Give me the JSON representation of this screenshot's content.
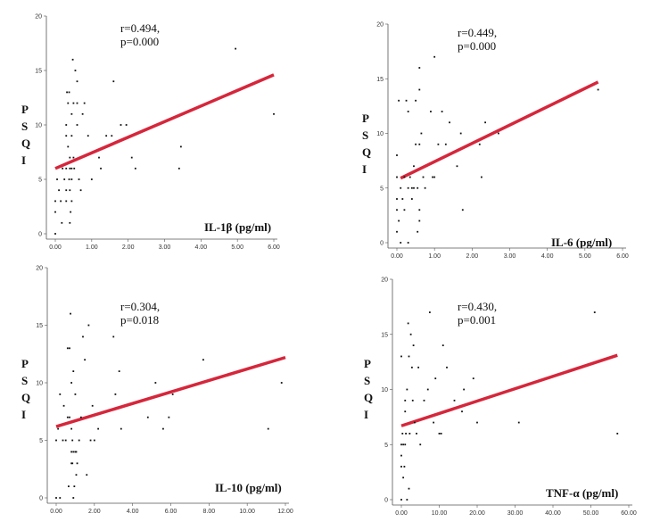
{
  "colors": {
    "fit_line": "#d6263b",
    "axis": "#555555",
    "point": "#111111"
  },
  "chart_data": [
    {
      "type": "scatter",
      "xlabel": "IL-1β (pg/ml)",
      "ylabel": "PSQI",
      "stat_r": "r=0.494,",
      "stat_p": "p=0.000",
      "xlim": [
        0,
        6
      ],
      "ylim": [
        0,
        20
      ],
      "xticks": [
        "0.00",
        "1.00",
        "2.00",
        "3.00",
        "4.00",
        "5.00",
        "6.00"
      ],
      "yticks": [
        "0",
        "5",
        "10",
        "15",
        "20"
      ],
      "fit": {
        "x": [
          0,
          6
        ],
        "y": [
          6.0,
          14.6
        ]
      },
      "points": [
        [
          0.0,
          0
        ],
        [
          0.0,
          2
        ],
        [
          0.0,
          3
        ],
        [
          0.05,
          5
        ],
        [
          0.1,
          4
        ],
        [
          0.15,
          3
        ],
        [
          0.18,
          1
        ],
        [
          0.2,
          6
        ],
        [
          0.25,
          5
        ],
        [
          0.3,
          3
        ],
        [
          0.3,
          4
        ],
        [
          0.3,
          6
        ],
        [
          0.3,
          9
        ],
        [
          0.3,
          10
        ],
        [
          0.32,
          13
        ],
        [
          0.35,
          8
        ],
        [
          0.35,
          12
        ],
        [
          0.38,
          5
        ],
        [
          0.38,
          13
        ],
        [
          0.4,
          1
        ],
        [
          0.4,
          4
        ],
        [
          0.4,
          6
        ],
        [
          0.4,
          7
        ],
        [
          0.42,
          2
        ],
        [
          0.45,
          3
        ],
        [
          0.45,
          5
        ],
        [
          0.45,
          6
        ],
        [
          0.45,
          9
        ],
        [
          0.45,
          11
        ],
        [
          0.48,
          16
        ],
        [
          0.5,
          7
        ],
        [
          0.5,
          12
        ],
        [
          0.52,
          6
        ],
        [
          0.55,
          15
        ],
        [
          0.6,
          10
        ],
        [
          0.6,
          12
        ],
        [
          0.6,
          14
        ],
        [
          0.65,
          5
        ],
        [
          0.7,
          4
        ],
        [
          0.75,
          11
        ],
        [
          0.8,
          12
        ],
        [
          0.9,
          9
        ],
        [
          1.0,
          5
        ],
        [
          1.2,
          7
        ],
        [
          1.25,
          6
        ],
        [
          1.4,
          9
        ],
        [
          1.55,
          9
        ],
        [
          1.6,
          14
        ],
        [
          1.8,
          10
        ],
        [
          1.95,
          10
        ],
        [
          2.1,
          7
        ],
        [
          2.2,
          6
        ],
        [
          3.4,
          6
        ],
        [
          3.45,
          8
        ],
        [
          4.95,
          17
        ],
        [
          6.0,
          11
        ]
      ]
    },
    {
      "type": "scatter",
      "xlabel": "IL-6 (pg/ml)",
      "ylabel": "PSQI",
      "stat_r": "r=0.449,",
      "stat_p": "p=0.000",
      "xlim": [
        0,
        6
      ],
      "ylim": [
        0,
        20
      ],
      "xticks": [
        "0.00",
        "1.00",
        "2.00",
        "3.00",
        "4.00",
        "5.00",
        "6.00"
      ],
      "yticks": [
        "0",
        "5",
        "10",
        "15",
        "20"
      ],
      "fit": {
        "x": [
          0.1,
          5.35
        ],
        "y": [
          5.9,
          14.7
        ]
      },
      "points": [
        [
          0.0,
          1
        ],
        [
          0.0,
          3
        ],
        [
          0.0,
          4
        ],
        [
          0.0,
          6
        ],
        [
          0.0,
          8
        ],
        [
          0.05,
          2
        ],
        [
          0.05,
          13
        ],
        [
          0.1,
          0
        ],
        [
          0.1,
          5
        ],
        [
          0.15,
          4
        ],
        [
          0.2,
          3
        ],
        [
          0.2,
          6
        ],
        [
          0.25,
          13
        ],
        [
          0.3,
          0
        ],
        [
          0.3,
          5
        ],
        [
          0.3,
          12
        ],
        [
          0.35,
          6
        ],
        [
          0.4,
          4
        ],
        [
          0.4,
          5
        ],
        [
          0.45,
          5
        ],
        [
          0.45,
          7
        ],
        [
          0.5,
          9
        ],
        [
          0.5,
          13
        ],
        [
          0.55,
          1
        ],
        [
          0.55,
          5
        ],
        [
          0.6,
          2
        ],
        [
          0.6,
          3
        ],
        [
          0.6,
          9
        ],
        [
          0.6,
          14
        ],
        [
          0.6,
          16
        ],
        [
          0.65,
          10
        ],
        [
          0.7,
          6
        ],
        [
          0.75,
          5
        ],
        [
          0.9,
          12
        ],
        [
          0.95,
          6
        ],
        [
          1.0,
          6
        ],
        [
          1.0,
          17
        ],
        [
          1.1,
          9
        ],
        [
          1.2,
          12
        ],
        [
          1.3,
          9
        ],
        [
          1.4,
          11
        ],
        [
          1.6,
          7
        ],
        [
          1.7,
          10
        ],
        [
          1.75,
          3
        ],
        [
          2.2,
          9
        ],
        [
          2.25,
          6
        ],
        [
          2.35,
          11
        ],
        [
          2.7,
          10
        ],
        [
          5.35,
          14
        ]
      ]
    },
    {
      "type": "scatter",
      "xlabel": "IL-10 (pg/ml)",
      "ylabel": "PSQI",
      "stat_r": "r=0.304,",
      "stat_p": "p=0.018",
      "xlim": [
        0,
        12
      ],
      "ylim": [
        0,
        20
      ],
      "xticks": [
        "0.00",
        "2.00",
        "4.00",
        "6.00",
        "8.00",
        "10.00",
        "12.00"
      ],
      "yticks": [
        "0",
        "5",
        "10",
        "15",
        "20"
      ],
      "fit": {
        "x": [
          0,
          12
        ],
        "y": [
          6.2,
          12.2
        ]
      },
      "points": [
        [
          0.0,
          0
        ],
        [
          0.0,
          5
        ],
        [
          0.1,
          6
        ],
        [
          0.2,
          0
        ],
        [
          0.2,
          9
        ],
        [
          0.35,
          5
        ],
        [
          0.4,
          8
        ],
        [
          0.5,
          5
        ],
        [
          0.6,
          7
        ],
        [
          0.6,
          13
        ],
        [
          0.65,
          1
        ],
        [
          0.7,
          7
        ],
        [
          0.7,
          13
        ],
        [
          0.75,
          16
        ],
        [
          0.8,
          3
        ],
        [
          0.8,
          4
        ],
        [
          0.8,
          6
        ],
        [
          0.8,
          10
        ],
        [
          0.85,
          3
        ],
        [
          0.85,
          5
        ],
        [
          0.9,
          0
        ],
        [
          0.9,
          4
        ],
        [
          0.9,
          11
        ],
        [
          0.95,
          1
        ],
        [
          1.0,
          4
        ],
        [
          1.0,
          9
        ],
        [
          1.05,
          2
        ],
        [
          1.05,
          4
        ],
        [
          1.1,
          3
        ],
        [
          1.2,
          5
        ],
        [
          1.3,
          7
        ],
        [
          1.4,
          14
        ],
        [
          1.5,
          12
        ],
        [
          1.6,
          2
        ],
        [
          1.7,
          15
        ],
        [
          1.8,
          5
        ],
        [
          1.9,
          8
        ],
        [
          2.0,
          5
        ],
        [
          2.2,
          6
        ],
        [
          3.0,
          14
        ],
        [
          3.1,
          9
        ],
        [
          3.3,
          11
        ],
        [
          3.4,
          6
        ],
        [
          4.8,
          7
        ],
        [
          5.2,
          10
        ],
        [
          5.6,
          6
        ],
        [
          5.9,
          7
        ],
        [
          6.1,
          9
        ],
        [
          7.7,
          12
        ],
        [
          11.1,
          6
        ],
        [
          11.8,
          10
        ]
      ]
    },
    {
      "type": "scatter",
      "xlabel": "TNF-α (pg/ml)",
      "ylabel": "PSQI",
      "stat_r": "r=0.430,",
      "stat_p": "p=0.001",
      "xlim": [
        0,
        60
      ],
      "ylim": [
        0,
        20
      ],
      "xticks": [
        "0.00",
        "10.00",
        "20.00",
        "30.00",
        "40.00",
        "50.00",
        "60.00"
      ],
      "yticks": [
        "0",
        "5",
        "10",
        "15",
        "20"
      ],
      "fit": {
        "x": [
          0,
          57
        ],
        "y": [
          6.7,
          13.1
        ]
      },
      "points": [
        [
          0.0,
          0
        ],
        [
          0.0,
          3
        ],
        [
          0.0,
          4
        ],
        [
          0.0,
          5
        ],
        [
          0.0,
          13
        ],
        [
          0.3,
          6
        ],
        [
          0.5,
          2
        ],
        [
          0.5,
          5
        ],
        [
          0.8,
          3
        ],
        [
          1.0,
          5
        ],
        [
          1.0,
          8
        ],
        [
          1.0,
          9
        ],
        [
          1.2,
          6
        ],
        [
          1.5,
          0
        ],
        [
          1.5,
          10
        ],
        [
          1.8,
          16
        ],
        [
          2.0,
          1
        ],
        [
          2.0,
          13
        ],
        [
          2.2,
          6
        ],
        [
          2.5,
          15
        ],
        [
          2.8,
          12
        ],
        [
          3.0,
          9
        ],
        [
          3.2,
          14
        ],
        [
          3.5,
          7
        ],
        [
          4.0,
          6
        ],
        [
          4.5,
          12
        ],
        [
          5.0,
          5
        ],
        [
          6.0,
          9
        ],
        [
          7.0,
          10
        ],
        [
          7.5,
          17
        ],
        [
          8.5,
          7
        ],
        [
          9.0,
          11
        ],
        [
          10.0,
          6
        ],
        [
          10.5,
          6
        ],
        [
          11.0,
          14
        ],
        [
          12.0,
          12
        ],
        [
          14.0,
          9
        ],
        [
          16.0,
          8
        ],
        [
          16.5,
          10
        ],
        [
          19.0,
          11
        ],
        [
          20.0,
          7
        ],
        [
          31.0,
          7
        ],
        [
          51.0,
          17
        ],
        [
          57.0,
          6
        ]
      ]
    }
  ]
}
